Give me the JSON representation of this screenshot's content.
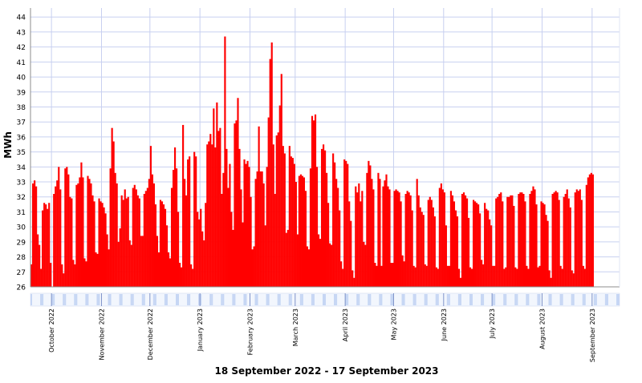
{
  "chart_data": {
    "type": "bar",
    "title": "",
    "xlabel": "18 September 2022 - 17 September 2023",
    "ylabel": "MWh",
    "ylim": [
      26,
      44.6
    ],
    "yticks": [
      26,
      27,
      28,
      29,
      30,
      31,
      32,
      33,
      34,
      35,
      36,
      37,
      38,
      39,
      40,
      41,
      42,
      43,
      44
    ],
    "grid": true,
    "bar_color": "#ff0000",
    "bar_edge_color": "#c80000",
    "grid_color": "#c8d0f0",
    "strip_color": "#c6d6f4",
    "x_range": [
      "2022-09-18",
      "2023-09-17"
    ],
    "month_ticks": [
      {
        "date": "2022-10-01",
        "label": "October 2022"
      },
      {
        "date": "2022-11-01",
        "label": "November 2022"
      },
      {
        "date": "2022-12-01",
        "label": "December 2022"
      },
      {
        "date": "2023-01-01",
        "label": "January 2023"
      },
      {
        "date": "2023-02-01",
        "label": "February 2023"
      },
      {
        "date": "2023-03-01",
        "label": "March 2023"
      },
      {
        "date": "2023-04-01",
        "label": "April 2023"
      },
      {
        "date": "2023-05-01",
        "label": "May 2023"
      },
      {
        "date": "2023-06-01",
        "label": "June 2023"
      },
      {
        "date": "2023-07-01",
        "label": "July 2023"
      },
      {
        "date": "2023-08-01",
        "label": "August 2023"
      },
      {
        "date": "2023-09-01",
        "label": "September 2023"
      }
    ],
    "daily": [
      {
        "start": "2022-09-18",
        "values": [
          27.5,
          32.9,
          33.1,
          32.7,
          29.5,
          28.8,
          27.2,
          31.1,
          31.6,
          31.5,
          31.2,
          31.6,
          27.6,
          26.0
        ]
      },
      {
        "start": "2022-10-02",
        "values": [
          32.2,
          32.7,
          33.1,
          34.0,
          32.5,
          27.5,
          26.9,
          33.9,
          34.0,
          33.5,
          32.0,
          31.9,
          27.8,
          27.5,
          32.8,
          32.9,
          33.3,
          34.3,
          33.3,
          27.9,
          27.7,
          33.4,
          33.2,
          32.9,
          32.1,
          31.7,
          28.3,
          28.2,
          31.9,
          31.7,
          31.6,
          31.3,
          30.9,
          29.5,
          28.5
        ]
      },
      {
        "start": "2022-11-06",
        "values": [
          33.9,
          36.6,
          35.7,
          33.6,
          32.9,
          29.0,
          29.9,
          32.1,
          31.8,
          32.5,
          31.9,
          32.0,
          29.1,
          28.8,
          32.6,
          32.8,
          32.5,
          32.1,
          31.9,
          29.4,
          29.4,
          32.2,
          32.4,
          32.6,
          33.2,
          35.4,
          33.5,
          32.9,
          31.5,
          29.4,
          28.3,
          31.8,
          31.7,
          31.5,
          31.2,
          30.1,
          28.3,
          27.9,
          32.6,
          33.8,
          35.3,
          33.9,
          31.0,
          27.6,
          27.3,
          36.8,
          33.2,
          32.1,
          34.5,
          34.7,
          27.5,
          27.2,
          35.0,
          34.7,
          31.0,
          30.5,
          31.2,
          29.7,
          29.1,
          31.6,
          35.5,
          35.7,
          36.2,
          35.5,
          37.9,
          35.3,
          38.3,
          36.4,
          36.6,
          32.2,
          33.6,
          42.7,
          35.2,
          32.6,
          34.2,
          31.0,
          29.8,
          36.9,
          37.1,
          38.6,
          35.2,
          32.5,
          30.3,
          34.5,
          34.2,
          34.4,
          34.0,
          32.0,
          28.5,
          28.7
        ]
      },
      {
        "start": "2023-02-04",
        "values": [
          33.2,
          33.7,
          36.7,
          33.7,
          33.7,
          32.9,
          30.1,
          34.0,
          37.3,
          41.2,
          42.3,
          35.5,
          32.2,
          36.1,
          36.3,
          38.1,
          40.2,
          35.4,
          34.9,
          29.6,
          29.8,
          35.4,
          34.7,
          34.6,
          34.2,
          33.0,
          29.5,
          33.4,
          33.5,
          33.4,
          33.3,
          32.4,
          28.7,
          28.5,
          33.9,
          37.4,
          37.1,
          37.5,
          34.0,
          29.5,
          29.2,
          35.2,
          35.5,
          35.1,
          33.6,
          31.6,
          28.9,
          28.8,
          34.9,
          34.3,
          33.2,
          32.6,
          31.1,
          27.7,
          27.2,
          34.5,
          34.4,
          34.2,
          31.7,
          30.4,
          27.1,
          26.6,
          32.7,
          32.3,
          32.9,
          31.7,
          32.4,
          29.0,
          28.8,
          33.6,
          34.4,
          34.1,
          33.2,
          32.5,
          27.6,
          27.4
        ]
      },
      {
        "start": "2023-04-21",
        "values": [
          33.6,
          33.2,
          27.4,
          32.7,
          33.1,
          33.5,
          32.7,
          32.5,
          27.6,
          27.6,
          32.4,
          32.5,
          32.4,
          32.3,
          31.7,
          28.1,
          27.7,
          32.2,
          32.4,
          32.3,
          32.1,
          31.1,
          27.4,
          27.3,
          33.2,
          32.1,
          31.3,
          31.0,
          30.8,
          27.5,
          27.4,
          31.8,
          32.0,
          31.8,
          31.3,
          30.7,
          27.3,
          27.2,
          32.6,
          32.9,
          32.5,
          32.3,
          30.1,
          27.4,
          27.4,
          32.4,
          32.1,
          31.7,
          31.1,
          30.7,
          27.2,
          26.6,
          32.2,
          32.3,
          32.1,
          31.9,
          30.6,
          27.3,
          27.2,
          31.8,
          31.7,
          31.6,
          31.5,
          30.9,
          27.8,
          27.5,
          31.6,
          31.2,
          31.1,
          30.5,
          30.1,
          27.4,
          27.4,
          31.9,
          32.0,
          32.2,
          32.3,
          31.7,
          27.2,
          27.3,
          32.0,
          32.0,
          32.1,
          32.1,
          31.4,
          27.3,
          27.2,
          32.2,
          32.3,
          32.3,
          32.2,
          31.7,
          27.4,
          27.2,
          32.2,
          32.4,
          32.7,
          32.5,
          31.5,
          27.3,
          27.4,
          31.7,
          31.6,
          31.5,
          30.8,
          30.4,
          27.1,
          26.6,
          32.2,
          32.3,
          32.4,
          32.3,
          31.8,
          27.4,
          27.2,
          32.0,
          32.2,
          32.5,
          31.9,
          31.3,
          27.1,
          26.9,
          32.3,
          32.5,
          32.4,
          32.5,
          31.8,
          27.4,
          27.2,
          32.8,
          33.3,
          33.5,
          33.6,
          33.5,
          26.0
        ]
      }
    ]
  }
}
